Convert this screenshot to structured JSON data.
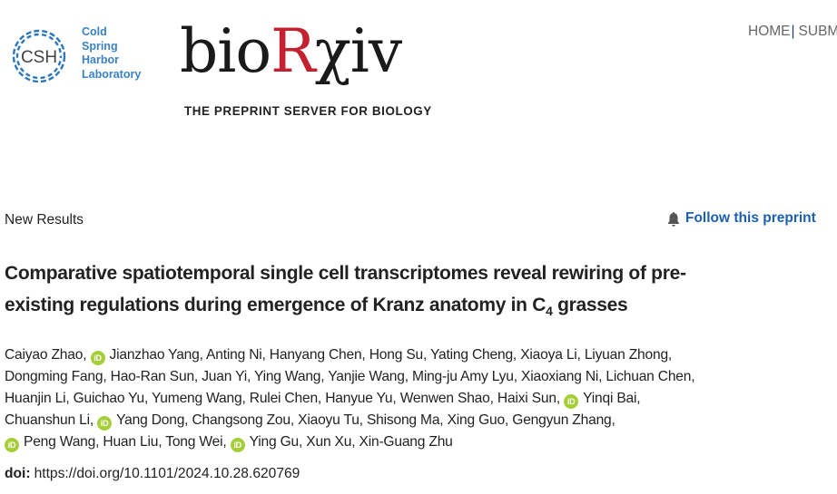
{
  "header": {
    "csh_logo_text": "CSH",
    "csh_lines": [
      "Cold",
      "Spring",
      "Harbor",
      "Laboratory"
    ],
    "logo_bio": "bio",
    "logo_r": "R",
    "logo_xiv": "χiv",
    "tagline": "THE PREPRINT SERVER FOR BIOLOGY",
    "nav": [
      {
        "label": "HOME"
      },
      {
        "label": "SUBMIT"
      }
    ],
    "nav_separator": "|",
    "colors": {
      "csh_blue": "#3b82c4",
      "biorxiv_red": "#c4202f",
      "link_blue": "#1a5fb4",
      "orcid_green": "#a6ce39"
    }
  },
  "article": {
    "type": "New Results",
    "follow_label": "Follow this preprint",
    "follow_icon": "bell-icon",
    "title_line1": "Comparative spatiotemporal single cell transcriptomes reveal rewiring of pre-",
    "title_line2_pre": "existing regulations during emergence of Kranz anatomy in C",
    "title_sub": "4",
    "title_line2_post": " grasses",
    "author_lines": [
      [
        {
          "name": "Caiyao Zhao,"
        },
        {
          "name": "Jianzhao Yang,",
          "orcid": true
        },
        {
          "name": "Anting Ni,"
        },
        {
          "name": "Hanyang Chen,"
        },
        {
          "name": "Hong Su,"
        },
        {
          "name": "Yating Cheng,"
        },
        {
          "name": "Xiaoya Li,"
        },
        {
          "name": "Liyuan Zhong,"
        }
      ],
      [
        {
          "name": "Dongming Fang,"
        },
        {
          "name": "Hao-Ran Sun,"
        },
        {
          "name": "Juan Yi,"
        },
        {
          "name": "Ying Wang,"
        },
        {
          "name": "Yanjie Wang,"
        },
        {
          "name": "Ming-ju Amy Lyu,"
        },
        {
          "name": "Xiaoxiang Ni,"
        },
        {
          "name": "Lichuan Chen,"
        }
      ],
      [
        {
          "name": "Huanjin Li,"
        },
        {
          "name": "Guichao Yu,"
        },
        {
          "name": "Yumeng Wang,"
        },
        {
          "name": "Rulei Chen,"
        },
        {
          "name": "Hanyue Yu,"
        },
        {
          "name": "Wenwen Shao,"
        },
        {
          "name": "Haixi Sun,"
        },
        {
          "name": "Yinqi Bai,",
          "orcid": true
        }
      ],
      [
        {
          "name": "Chuanshun Li,"
        },
        {
          "name": "Yang Dong,",
          "orcid": true
        },
        {
          "name": "Changsong Zou,"
        },
        {
          "name": "Xiaoyu Tu,"
        },
        {
          "name": "Shisong Ma,"
        },
        {
          "name": "Xing Guo,"
        },
        {
          "name": "Gengyun Zhang,"
        }
      ],
      [
        {
          "name": "Peng Wang,",
          "orcid": true
        },
        {
          "name": "Huan Liu,"
        },
        {
          "name": "Tong Wei,"
        },
        {
          "name": "Ying Gu,",
          "orcid": true
        },
        {
          "name": "Xun Xu,"
        },
        {
          "name": "Xin-Guang Zhu"
        }
      ]
    ],
    "orcid_label": "iD",
    "doi_label": "doi:",
    "doi_value": "https://doi.org/10.1101/2024.10.28.620769"
  }
}
